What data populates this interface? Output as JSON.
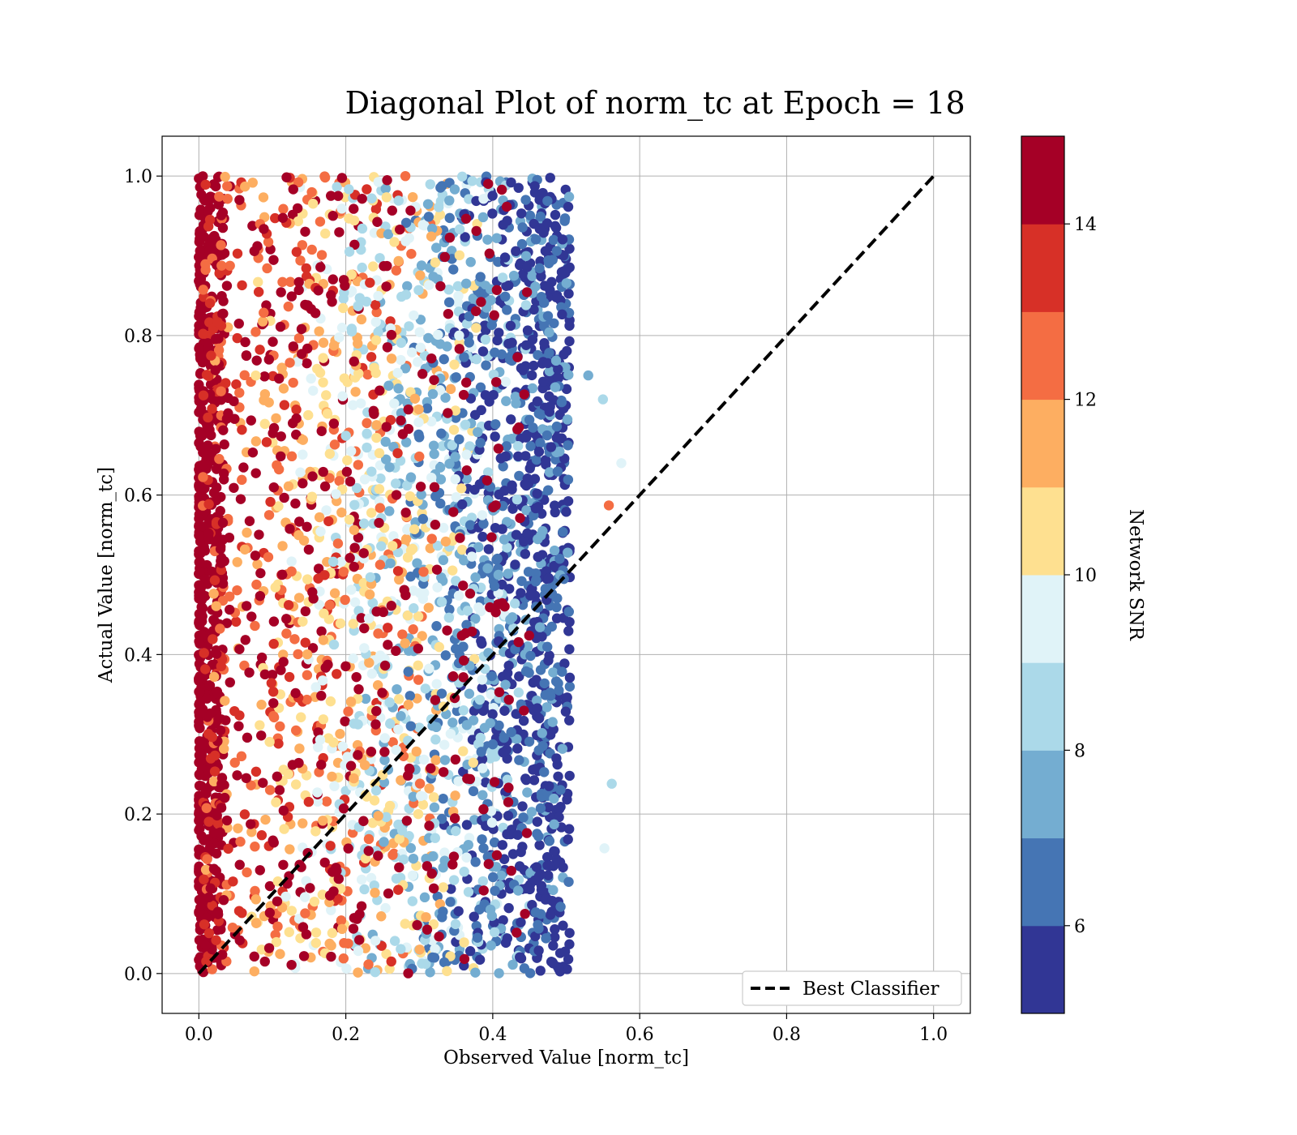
{
  "chart_data": {
    "type": "scatter",
    "title": "Diagonal Plot of norm_tc at Epoch = 18",
    "xlabel": "Observed Value [norm_tc]",
    "ylabel": "Actual Value [norm_tc]",
    "xlim": [
      -0.05,
      1.05
    ],
    "ylim": [
      -0.05,
      1.05
    ],
    "x_ticks": [
      0.0,
      0.2,
      0.4,
      0.6,
      0.8,
      1.0
    ],
    "y_ticks": [
      0.0,
      0.2,
      0.4,
      0.6,
      0.8,
      1.0
    ],
    "x_tick_labels": [
      "0.0",
      "0.2",
      "0.4",
      "0.6",
      "0.8",
      "1.0"
    ],
    "y_tick_labels": [
      "0.0",
      "0.2",
      "0.4",
      "0.6",
      "0.8",
      "1.0"
    ],
    "grid": true,
    "series": [
      {
        "name": "",
        "kind": "scatter",
        "color_by": "Network SNR",
        "x_range": [
          0.0,
          0.58
        ],
        "y_range": [
          0.0,
          1.0
        ],
        "trend": "observed value decreases as SNR increases; points with SNR ~14-15 cluster at x≈0-0.03, points with SNR ~5-7 cluster at x≈0.45-0.5",
        "sample_points": [
          {
            "x": 0.0,
            "y": 0.0,
            "snr": 15
          },
          {
            "x": 0.01,
            "y": 0.5,
            "snr": 15
          },
          {
            "x": 0.02,
            "y": 1.0,
            "snr": 15
          },
          {
            "x": 0.05,
            "y": 0.3,
            "snr": 13.5
          },
          {
            "x": 0.1,
            "y": 0.7,
            "snr": 12.5
          },
          {
            "x": 0.2,
            "y": 0.5,
            "snr": 11.5
          },
          {
            "x": 0.3,
            "y": 0.4,
            "snr": 10.5
          },
          {
            "x": 0.4,
            "y": 0.6,
            "snr": 9
          },
          {
            "x": 0.45,
            "y": 0.2,
            "snr": 7.5
          },
          {
            "x": 0.48,
            "y": 0.8,
            "snr": 6
          },
          {
            "x": 0.5,
            "y": 0.1,
            "snr": 5.5
          },
          {
            "x": 0.53,
            "y": 0.75,
            "snr": 7.5
          },
          {
            "x": 0.55,
            "y": 0.72,
            "snr": 8
          },
          {
            "x": 0.575,
            "y": 0.64,
            "snr": 9.5
          },
          {
            "x": 0.558,
            "y": 0.587,
            "snr": 12
          },
          {
            "x": 0.562,
            "y": 0.238,
            "snr": 8.5
          },
          {
            "x": 0.552,
            "y": 0.157,
            "snr": 9.5
          }
        ]
      },
      {
        "name": "Best Classifier",
        "kind": "line",
        "style": "dashed",
        "color": "#000000",
        "x": [
          0.0,
          1.0
        ],
        "y": [
          0.0,
          1.0
        ]
      }
    ],
    "legend": {
      "placement": "lower right",
      "entries": [
        "Best Classifier"
      ]
    },
    "colorbar": {
      "label": "Network SNR",
      "range": [
        5,
        15
      ],
      "levels": [
        5,
        6,
        7,
        8,
        9,
        10,
        11,
        12,
        13,
        14,
        15
      ],
      "colors": [
        "#313695",
        "#4575b4",
        "#74add1",
        "#abd9e9",
        "#e0f3f8",
        "#fee090",
        "#fdae61",
        "#f46d43",
        "#d73027",
        "#a50026"
      ],
      "ticks": [
        6,
        8,
        10,
        12,
        14
      ],
      "tick_labels": [
        "6",
        "8",
        "10",
        "12",
        "14"
      ]
    }
  }
}
